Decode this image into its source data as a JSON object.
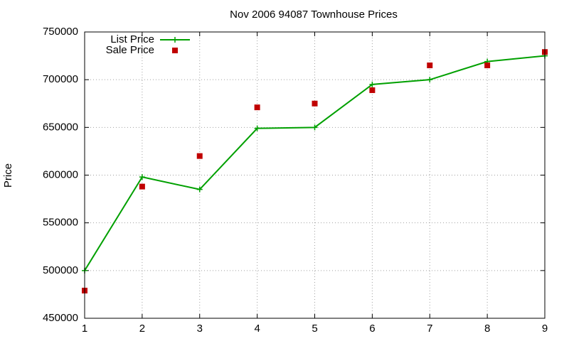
{
  "chart_data": {
    "type": "line",
    "title": "Nov 2006 94087 Townhouse Prices",
    "y_label": "Price",
    "x": [
      1,
      2,
      3,
      4,
      5,
      6,
      7,
      8,
      9
    ],
    "series": [
      {
        "name": "List Price",
        "color": "#00a000",
        "style": "linespoints",
        "values": [
          500000,
          598000,
          585000,
          649000,
          650000,
          695000,
          700000,
          719000,
          725000
        ]
      },
      {
        "name": "Sale Price",
        "color": "#c00000",
        "style": "points",
        "values": [
          479000,
          588000,
          620000,
          671000,
          675000,
          689000,
          715000,
          715000,
          729000
        ]
      }
    ],
    "xlim": [
      1,
      9
    ],
    "xticks": [
      1,
      2,
      3,
      4,
      5,
      6,
      7,
      8,
      9
    ],
    "ylim": [
      450000,
      750000
    ],
    "yticks": [
      450000,
      500000,
      550000,
      600000,
      650000,
      700000,
      750000
    ],
    "grid": true,
    "legend": "top-left"
  }
}
